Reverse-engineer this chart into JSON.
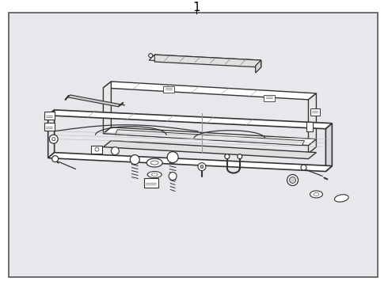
{
  "title": "1",
  "bg_color": "#ffffff",
  "border_color": "#000000",
  "line_color": "#333333",
  "light_gray": "#c8c8c8",
  "bg_gray": "#e8e8ec",
  "title_fontsize": 11,
  "fig_width": 4.9,
  "fig_height": 3.6,
  "dpi": 100
}
